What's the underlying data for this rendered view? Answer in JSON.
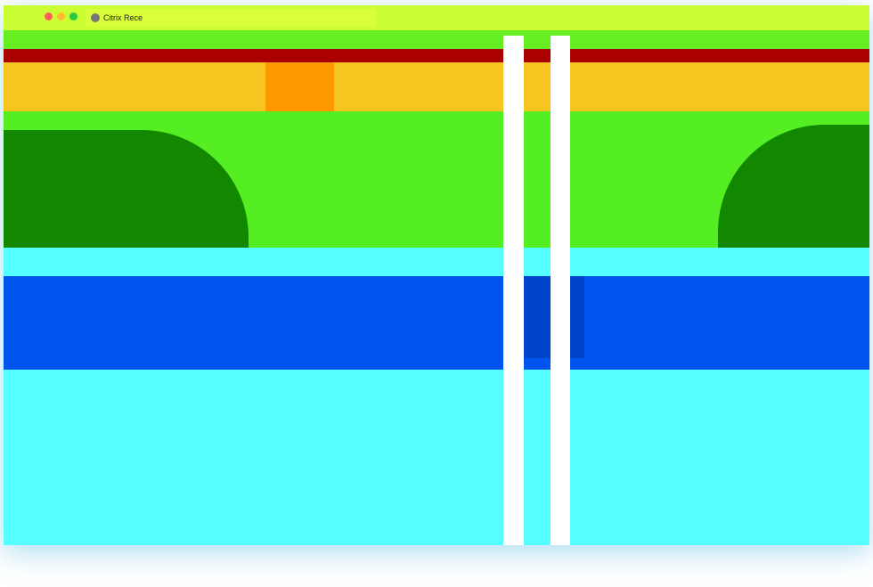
{
  "browser": {
    "tab_title": "Citrix Rece"
  }
}
